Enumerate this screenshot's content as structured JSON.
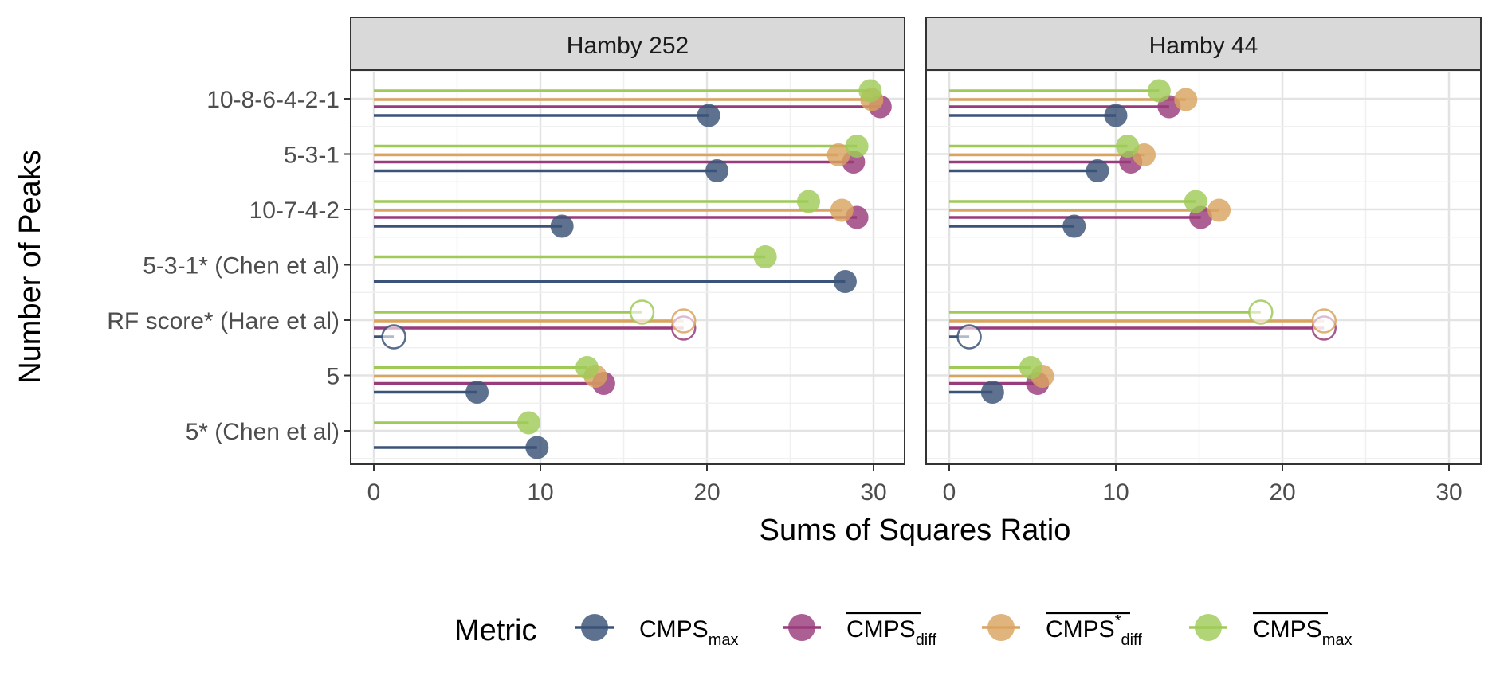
{
  "chart_data": {
    "type": "lollipop",
    "xlabel": "Sums of Squares Ratio",
    "ylabel": "Number of Peaks",
    "xlim": [
      -1.5,
      32
    ],
    "x_ticks": [
      "0",
      "10",
      "20",
      "30"
    ],
    "x_tick_values": [
      0,
      10,
      20,
      30
    ],
    "categories": [
      "10-8-6-4-2-1",
      "5-3-1",
      "10-7-4-2",
      "5-3-1* (Chen et al)",
      "RF score* (Hare et al)",
      "5",
      "5* (Chen et al)"
    ],
    "grid": true,
    "legend": {
      "title": "Metric",
      "placement": "bottom",
      "entries": [
        {
          "base": "CMPS",
          "sub": "max",
          "sup": "",
          "overline": false
        },
        {
          "base": "CMPS",
          "sub": "diff",
          "sup": "",
          "overline": true
        },
        {
          "base": "CMPS",
          "sub": "diff",
          "sup": "*",
          "overline": true
        },
        {
          "base": "CMPS",
          "sub": "max",
          "sup": "",
          "overline": true
        }
      ]
    },
    "series_colors": [
      "#3b5378",
      "#993c7b",
      "#d9a460",
      "#9fca58"
    ],
    "panels": [
      {
        "title": "Hamby 252",
        "series": [
          {
            "values": [
              20.1,
              20.6,
              11.3,
              28.3,
              1.2,
              6.2,
              9.8
            ]
          },
          {
            "values": [
              30.4,
              28.8,
              29.0,
              null,
              18.6,
              13.8,
              null
            ]
          },
          {
            "values": [
              29.9,
              27.9,
              28.1,
              null,
              18.6,
              13.3,
              null
            ]
          },
          {
            "values": [
              29.8,
              29.0,
              26.1,
              23.5,
              16.1,
              12.8,
              9.3
            ]
          }
        ],
        "hollow": [
          false,
          false,
          false,
          false,
          true,
          false,
          false
        ]
      },
      {
        "title": "Hamby 44",
        "series": [
          {
            "values": [
              10.0,
              8.9,
              7.5,
              null,
              1.2,
              2.6,
              null
            ]
          },
          {
            "values": [
              13.2,
              10.9,
              15.1,
              null,
              22.5,
              5.3,
              null
            ]
          },
          {
            "values": [
              14.2,
              11.7,
              16.2,
              null,
              22.5,
              5.6,
              null
            ]
          },
          {
            "values": [
              12.6,
              10.7,
              14.8,
              null,
              18.7,
              4.9,
              null
            ]
          }
        ],
        "hollow": [
          false,
          false,
          false,
          false,
          true,
          false,
          false
        ]
      }
    ]
  }
}
